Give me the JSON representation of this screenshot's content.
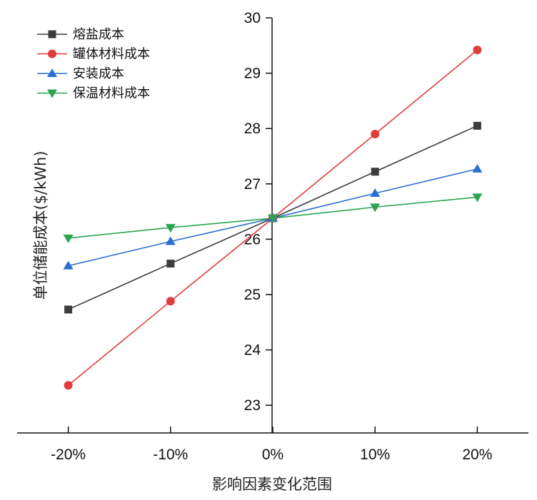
{
  "chart_data": {
    "type": "line",
    "title": "",
    "xlabel": "影响因素变化范围",
    "ylabel": "单位储能成本($/kWh)",
    "categories": [
      "-20%",
      "-10%",
      "0%",
      "10%",
      "20%"
    ],
    "x": [
      -20,
      -10,
      0,
      10,
      20
    ],
    "xlim": [
      -25,
      25
    ],
    "ylim": [
      22.5,
      30
    ],
    "yticks": [
      23,
      24,
      25,
      26,
      27,
      28,
      29,
      30
    ],
    "ytick_labels": [
      "23",
      "24",
      "25",
      "26",
      "27",
      "28",
      "29",
      "30"
    ],
    "legend_position": "top-left",
    "series": [
      {
        "name": "熔盐成本",
        "color": "#3c3c3c",
        "marker": "square",
        "values": [
          24.73,
          25.56,
          26.38,
          27.22,
          28.05
        ]
      },
      {
        "name": "罐体材料成本",
        "color": "#e03c3c",
        "marker": "circle",
        "values": [
          23.36,
          24.88,
          26.38,
          27.9,
          29.42
        ]
      },
      {
        "name": "安装成本",
        "color": "#2a6fd0",
        "marker": "triangle-up",
        "values": [
          25.52,
          25.96,
          26.38,
          26.83,
          27.27
        ]
      },
      {
        "name": "保温材料成本",
        "color": "#2aa352",
        "marker": "triangle-down",
        "values": [
          26.02,
          26.21,
          26.38,
          26.58,
          26.76
        ]
      }
    ]
  }
}
